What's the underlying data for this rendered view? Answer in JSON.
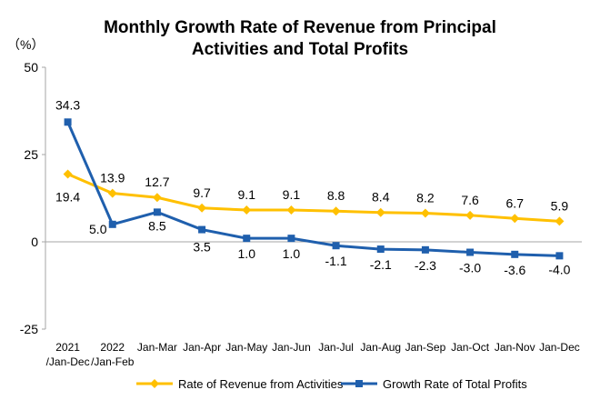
{
  "chart_data": {
    "type": "line",
    "title_lines": [
      "Monthly Growth Rate of Revenue from Principal",
      "Activities and Total Profits"
    ],
    "unit_label": "（%）",
    "categories": [
      [
        "2021",
        "/Jan-Dec"
      ],
      [
        "2022",
        "/Jan-Feb"
      ],
      [
        "Jan-Mar"
      ],
      [
        "Jan-Apr"
      ],
      [
        "Jan-May"
      ],
      [
        "Jan-Jun"
      ],
      [
        "Jan-Jul"
      ],
      [
        "Jan-Aug"
      ],
      [
        "Jan-Sep"
      ],
      [
        "Jan-Oct"
      ],
      [
        "Jan-Nov"
      ],
      [
        "Jan-Dec"
      ]
    ],
    "ylim": [
      -25,
      50
    ],
    "yticks": [
      -25,
      0,
      25,
      50
    ],
    "grid": false,
    "legend_position": "bottom",
    "series": [
      {
        "name": "Rate of Revenue from Activities",
        "color": "#FFC000",
        "marker": "diamond",
        "values": [
          19.4,
          13.9,
          12.7,
          9.7,
          9.1,
          9.1,
          8.8,
          8.4,
          8.2,
          7.6,
          6.7,
          5.9
        ],
        "labels": [
          "19.4",
          "13.9",
          "12.7",
          "9.7",
          "9.1",
          "9.1",
          "8.8",
          "8.4",
          "8.2",
          "7.6",
          "6.7",
          "5.9"
        ]
      },
      {
        "name": "Growth Rate of Total Profits",
        "color": "#1F5FAD",
        "marker": "square",
        "values": [
          34.3,
          5.0,
          8.5,
          3.5,
          1.0,
          1.0,
          -1.1,
          -2.1,
          -2.3,
          -3.0,
          -3.6,
          -4.0
        ],
        "labels": [
          "34.3",
          "5.0",
          "8.5",
          "3.5",
          "1.0",
          "1.0",
          "-1.1",
          "-2.1",
          "-2.3",
          "-3.0",
          "-3.6",
          "-4.0"
        ]
      }
    ]
  }
}
